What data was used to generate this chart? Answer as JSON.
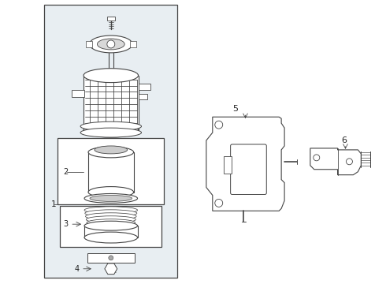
{
  "bg_color": "#ffffff",
  "panel_bg": "#e8eef2",
  "line_color": "#444444",
  "lw": 0.7,
  "fig_w": 4.9,
  "fig_h": 3.6,
  "dpi": 100
}
